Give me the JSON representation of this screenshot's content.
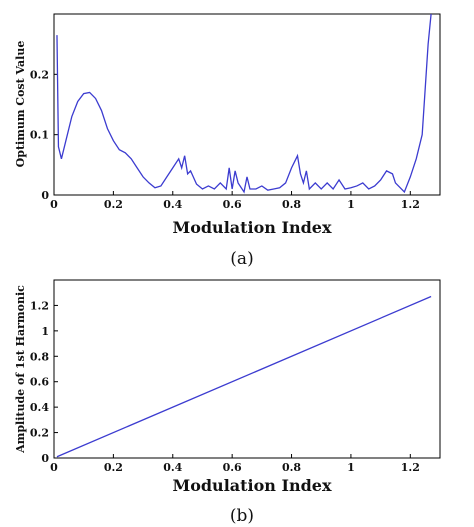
{
  "chart_data": [
    {
      "type": "line",
      "caption": "(a)",
      "xlabel": "Modulation Index",
      "ylabel": "Optimum Cost Value",
      "xlim": [
        0,
        1.3
      ],
      "ylim": [
        0,
        0.3
      ],
      "xticks": [
        "0",
        "0.2",
        "0.4",
        "0.6",
        "0.8",
        "1",
        "1.2"
      ],
      "xtick_values": [
        0,
        0.2,
        0.4,
        0.6,
        0.8,
        1,
        1.2
      ],
      "yticks": [
        "0",
        "0.1",
        "0.2"
      ],
      "ytick_values": [
        0,
        0.1,
        0.2
      ],
      "grid": false,
      "series": [
        {
          "color": "#3c3cd0",
          "x": [
            0.01,
            0.015,
            0.025,
            0.04,
            0.06,
            0.08,
            0.1,
            0.12,
            0.14,
            0.16,
            0.18,
            0.2,
            0.22,
            0.24,
            0.26,
            0.28,
            0.3,
            0.32,
            0.34,
            0.36,
            0.38,
            0.4,
            0.42,
            0.43,
            0.44,
            0.45,
            0.46,
            0.48,
            0.5,
            0.52,
            0.54,
            0.56,
            0.58,
            0.59,
            0.6,
            0.61,
            0.62,
            0.64,
            0.65,
            0.66,
            0.68,
            0.7,
            0.72,
            0.74,
            0.76,
            0.78,
            0.8,
            0.82,
            0.83,
            0.84,
            0.85,
            0.86,
            0.88,
            0.9,
            0.92,
            0.94,
            0.96,
            0.98,
            1.0,
            1.02,
            1.04,
            1.06,
            1.08,
            1.1,
            1.12,
            1.14,
            1.15,
            1.16,
            1.18,
            1.2,
            1.22,
            1.24,
            1.26,
            1.27
          ],
          "y": [
            0.265,
            0.08,
            0.06,
            0.09,
            0.13,
            0.155,
            0.168,
            0.17,
            0.16,
            0.14,
            0.11,
            0.09,
            0.075,
            0.07,
            0.06,
            0.045,
            0.03,
            0.02,
            0.012,
            0.015,
            0.03,
            0.045,
            0.06,
            0.045,
            0.065,
            0.035,
            0.04,
            0.018,
            0.01,
            0.015,
            0.01,
            0.02,
            0.01,
            0.045,
            0.01,
            0.04,
            0.02,
            0.005,
            0.03,
            0.01,
            0.01,
            0.015,
            0.008,
            0.01,
            0.012,
            0.02,
            0.045,
            0.065,
            0.035,
            0.02,
            0.04,
            0.01,
            0.02,
            0.01,
            0.02,
            0.01,
            0.025,
            0.01,
            0.012,
            0.015,
            0.02,
            0.01,
            0.015,
            0.025,
            0.04,
            0.035,
            0.02,
            0.015,
            0.005,
            0.03,
            0.06,
            0.1,
            0.25,
            0.3
          ]
        }
      ]
    },
    {
      "type": "line",
      "caption": "(b)",
      "xlabel": "Modulation Index",
      "ylabel": "Amplitude of 1st Harmonic",
      "xlim": [
        0,
        1.3
      ],
      "ylim": [
        0,
        1.4
      ],
      "xticks": [
        "0",
        "0.2",
        "0.4",
        "0.6",
        "0.8",
        "1",
        "1.2"
      ],
      "xtick_values": [
        0,
        0.2,
        0.4,
        0.6,
        0.8,
        1,
        1.2
      ],
      "yticks": [
        "0",
        "0.2",
        "0.4",
        "0.6",
        "0.8",
        "1",
        "1.2"
      ],
      "ytick_values": [
        0,
        0.2,
        0.4,
        0.6,
        0.8,
        1,
        1.2
      ],
      "grid": false,
      "series": [
        {
          "color": "#3c3cd0",
          "x": [
            0.01,
            1.27
          ],
          "y": [
            0.01,
            1.27
          ]
        }
      ]
    }
  ]
}
